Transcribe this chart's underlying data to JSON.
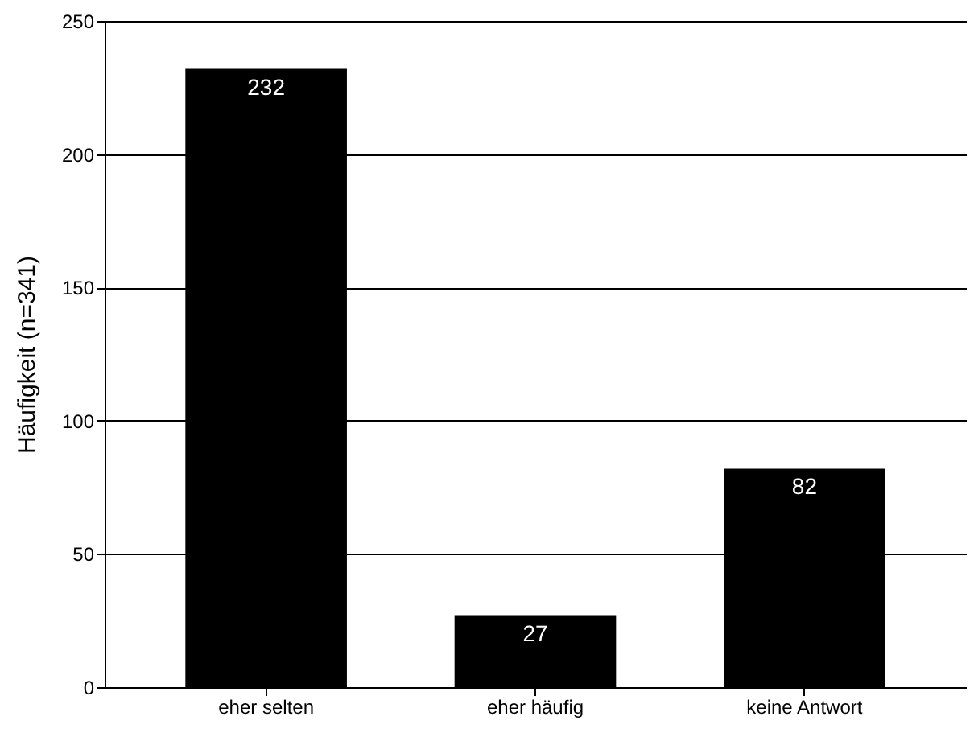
{
  "chart_data": {
    "type": "bar",
    "ylabel": "Häufigkeit (n=341)",
    "categories": [
      "eher selten",
      "eher häufig",
      "keine Antwort"
    ],
    "values": [
      232,
      27,
      82
    ],
    "color": "#000000",
    "ylim": [
      0,
      250
    ],
    "yticks": [
      0,
      50,
      100,
      150,
      200,
      250
    ],
    "grid": "y",
    "data_labels": true
  }
}
